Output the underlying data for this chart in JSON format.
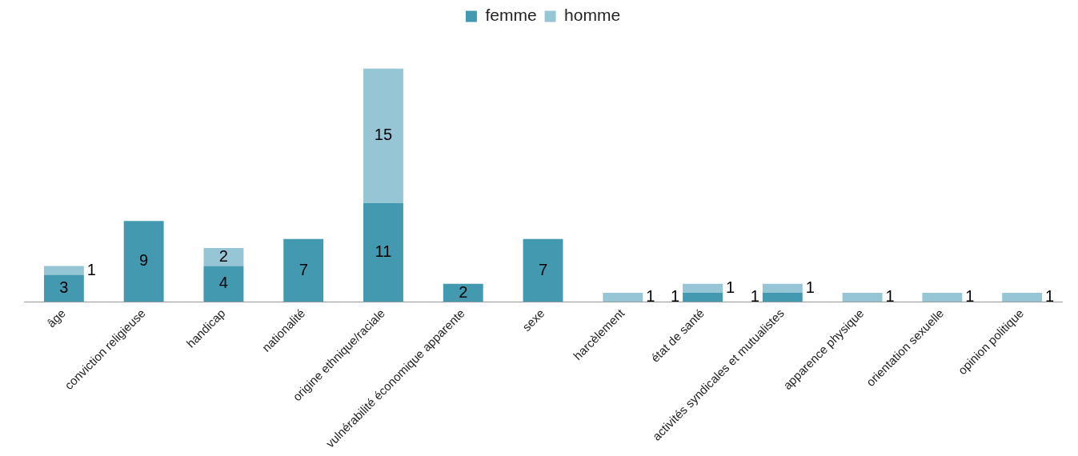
{
  "chart_data": {
    "type": "bar",
    "stacked": true,
    "data_labels": true,
    "legend": "top",
    "grid": false,
    "categories": [
      "âge",
      "conviction religieuse",
      "handicap",
      "nationalité",
      "origine ethnique/raciale",
      "vulnérabilité économique apparente",
      "sexe",
      "harcèlement",
      "état de santé",
      "activités syndicales et mutualistes",
      "apparence physique",
      "orientation sexuelle",
      "opinion politique"
    ],
    "series": [
      {
        "name": "femme",
        "color": "#4299b0",
        "values": [
          3,
          9,
          4,
          7,
          11,
          2,
          7,
          null,
          1,
          1,
          null,
          null,
          null
        ]
      },
      {
        "name": "homme",
        "color": "#96c5d6",
        "values": [
          1,
          null,
          2,
          null,
          15,
          null,
          null,
          1,
          1,
          1,
          1,
          1,
          1
        ]
      }
    ]
  }
}
